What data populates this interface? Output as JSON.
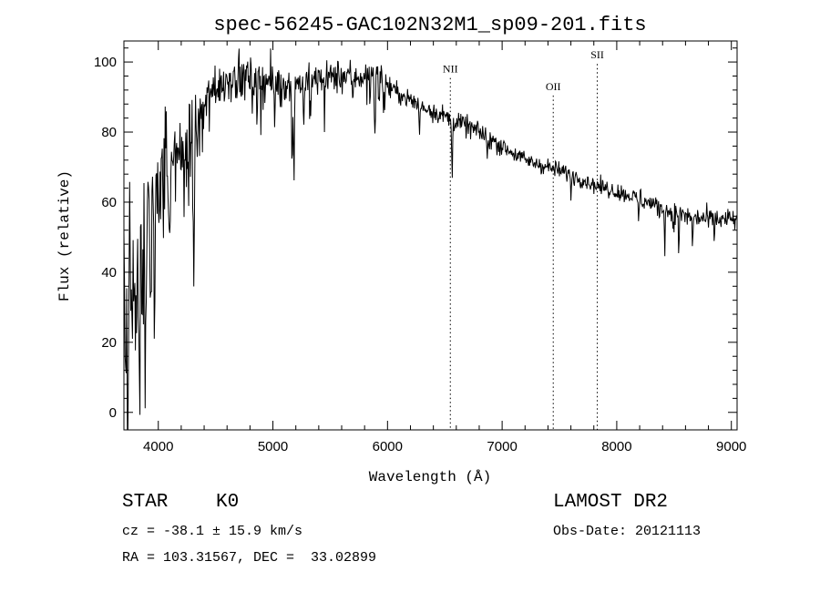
{
  "chart_data": {
    "type": "line",
    "title": "spec-56245-GAC102N32M1_sp09-201.fits",
    "xlabel": "Wavelength (Å)",
    "ylabel": "Flux (relative)",
    "xlim": [
      3700,
      9050
    ],
    "ylim": [
      -5,
      106
    ],
    "x_ticks": [
      4000,
      5000,
      6000,
      7000,
      8000,
      9000
    ],
    "y_ticks": [
      0,
      20,
      40,
      60,
      80,
      100
    ],
    "x_tick_labels": [
      "4000",
      "5000",
      "6000",
      "7000",
      "8000",
      "9000"
    ],
    "y_tick_labels": [
      "0",
      "20",
      "40",
      "60",
      "80",
      "100"
    ],
    "grid": false,
    "series": [
      {
        "continuum": {
          "x": [
            3700,
            3750,
            3800,
            3850,
            3900,
            3950,
            4000,
            4100,
            4200,
            4300,
            4400,
            4500,
            4600,
            4700,
            4800,
            4900,
            5000,
            5200,
            5400,
            5600,
            5800,
            5900,
            6000,
            6200,
            6400,
            6600,
            6800,
            7000,
            7200,
            7400,
            7600,
            7800,
            8000,
            8200,
            8400,
            8600,
            8800,
            9050
          ],
          "y": [
            38,
            50,
            45,
            52,
            58,
            62,
            66,
            72,
            76,
            80,
            87,
            93,
            95,
            96,
            95,
            95,
            94,
            94,
            95,
            96,
            96,
            96,
            93,
            89,
            86,
            83,
            80,
            76,
            72,
            70,
            68,
            65,
            63,
            61,
            58,
            56,
            55,
            55
          ]
        },
        "absorption_lines": [
          {
            "x": 3720,
            "depth": 40,
            "width": 6
          },
          {
            "x": 3735,
            "depth": 55,
            "width": 6
          },
          {
            "x": 3770,
            "depth": 35,
            "width": 6
          },
          {
            "x": 3800,
            "depth": 25,
            "width": 8
          },
          {
            "x": 3835,
            "depth": 40,
            "width": 8
          },
          {
            "x": 3889,
            "depth": 30,
            "width": 8
          },
          {
            "x": 3934,
            "depth": 40,
            "width": 8
          },
          {
            "x": 3968,
            "depth": 35,
            "width": 8
          },
          {
            "x": 4102,
            "depth": 20,
            "width": 8
          },
          {
            "x": 4227,
            "depth": 15,
            "width": 6
          },
          {
            "x": 4308,
            "depth": 38,
            "width": 8
          },
          {
            "x": 4340,
            "depth": 10,
            "width": 6
          },
          {
            "x": 4383,
            "depth": 8,
            "width": 6
          },
          {
            "x": 4861,
            "depth": 10,
            "width": 8
          },
          {
            "x": 5015,
            "depth": 8,
            "width": 6
          },
          {
            "x": 5167,
            "depth": 22,
            "width": 6
          },
          {
            "x": 5183,
            "depth": 28,
            "width": 6
          },
          {
            "x": 5270,
            "depth": 12,
            "width": 6
          },
          {
            "x": 5328,
            "depth": 10,
            "width": 6
          },
          {
            "x": 5450,
            "depth": 6,
            "width": 6
          },
          {
            "x": 5700,
            "depth": 8,
            "width": 6
          },
          {
            "x": 5890,
            "depth": 18,
            "width": 6
          },
          {
            "x": 6280,
            "depth": 8,
            "width": 6
          },
          {
            "x": 6563,
            "depth": 16,
            "width": 6
          },
          {
            "x": 6870,
            "depth": 6,
            "width": 6
          },
          {
            "x": 7600,
            "depth": 6,
            "width": 6
          },
          {
            "x": 8190,
            "depth": 6,
            "width": 6
          },
          {
            "x": 8420,
            "depth": 10,
            "width": 4
          },
          {
            "x": 8498,
            "depth": 8,
            "width": 4
          },
          {
            "x": 8542,
            "depth": 12,
            "width": 4
          },
          {
            "x": 8662,
            "depth": 11,
            "width": 4
          },
          {
            "x": 8850,
            "depth": 6,
            "width": 4
          }
        ]
      }
    ],
    "annotations": [
      {
        "label": "NII",
        "x": 6548,
        "label_y": 97
      },
      {
        "label": "OII",
        "x": 7446,
        "label_y": 92
      },
      {
        "label": "SII",
        "x": 7830,
        "label_y": 101
      }
    ]
  },
  "info": {
    "object_class": "STAR",
    "subclass": "K0",
    "survey": "LAMOST DR2",
    "cz": "cz = -38.1 ± 15.9 km/s",
    "obs_date": "Obs-Date: 20121113",
    "coords": "RA = 103.31567, DEC =  33.02899"
  }
}
